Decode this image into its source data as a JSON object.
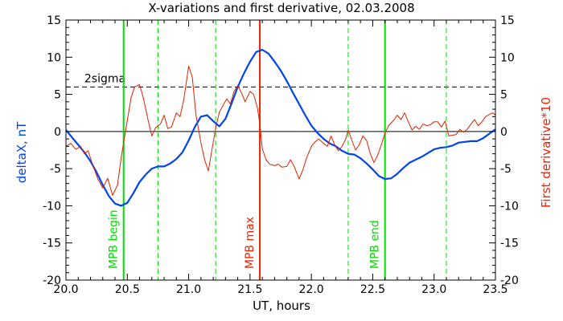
{
  "chart_data": {
    "type": "line",
    "title": "X-variations and first derivative, 02.03.2008",
    "xlabel": "UT, hours",
    "ylabel_left": "deltaX, nT",
    "ylabel_right": "First derivative*10",
    "xlim": [
      20.0,
      23.5
    ],
    "ylim": [
      -20,
      15
    ],
    "x_ticks": [
      20.0,
      20.5,
      21.0,
      21.5,
      22.0,
      22.5,
      23.0,
      23.5
    ],
    "x_tick_labels": [
      "20.0",
      "20.5",
      "21.0",
      "21.5",
      "22.0",
      "22.5",
      "23.0",
      "23.5"
    ],
    "y_ticks": [
      -20,
      -15,
      -10,
      -5,
      0,
      5,
      10,
      15
    ],
    "y_tick_labels": [
      "-20",
      "-15",
      "-10",
      "-5",
      "0",
      "5",
      "10",
      "15"
    ],
    "threshold": {
      "label": "2sigma",
      "value": 6
    },
    "zero_line": 0,
    "vertical_lines": [
      {
        "x": 20.47,
        "style": "solid",
        "color": "#00dd00",
        "label": "MPB begin"
      },
      {
        "x": 20.75,
        "style": "dashed",
        "color": "#00dd00",
        "label": ""
      },
      {
        "x": 21.22,
        "style": "dashed",
        "color": "#00dd00",
        "label": ""
      },
      {
        "x": 21.58,
        "style": "solid",
        "color": "#ee2200",
        "label": "MPB max"
      },
      {
        "x": 22.3,
        "style": "dashed",
        "color": "#00dd00",
        "label": ""
      },
      {
        "x": 22.6,
        "style": "solid",
        "color": "#00dd00",
        "label": "MPB end"
      },
      {
        "x": 23.1,
        "style": "dashed",
        "color": "#00dd00",
        "label": ""
      }
    ],
    "series": [
      {
        "color": "#0044ee",
        "axis": "left",
        "points": [
          [
            20.0,
            0.2
          ],
          [
            20.05,
            -0.8
          ],
          [
            20.1,
            -1.8
          ],
          [
            20.15,
            -2.8
          ],
          [
            20.2,
            -4.0
          ],
          [
            20.25,
            -5.5
          ],
          [
            20.3,
            -7.2
          ],
          [
            20.35,
            -8.7
          ],
          [
            20.4,
            -9.7
          ],
          [
            20.45,
            -10.0
          ],
          [
            20.5,
            -9.6
          ],
          [
            20.55,
            -8.3
          ],
          [
            20.6,
            -6.8
          ],
          [
            20.65,
            -5.8
          ],
          [
            20.7,
            -5.0
          ],
          [
            20.75,
            -4.7
          ],
          [
            20.8,
            -4.7
          ],
          [
            20.85,
            -4.3
          ],
          [
            20.9,
            -3.7
          ],
          [
            20.95,
            -2.8
          ],
          [
            21.0,
            -1.2
          ],
          [
            21.05,
            0.6
          ],
          [
            21.1,
            2.0
          ],
          [
            21.15,
            2.2
          ],
          [
            21.2,
            1.4
          ],
          [
            21.25,
            0.7
          ],
          [
            21.3,
            1.7
          ],
          [
            21.35,
            3.8
          ],
          [
            21.4,
            6.0
          ],
          [
            21.45,
            7.8
          ],
          [
            21.5,
            9.4
          ],
          [
            21.55,
            10.7
          ],
          [
            21.6,
            11.0
          ],
          [
            21.65,
            10.5
          ],
          [
            21.7,
            9.4
          ],
          [
            21.75,
            8.2
          ],
          [
            21.8,
            6.8
          ],
          [
            21.85,
            5.2
          ],
          [
            21.9,
            3.7
          ],
          [
            21.95,
            2.2
          ],
          [
            22.0,
            0.8
          ],
          [
            22.05,
            -0.2
          ],
          [
            22.1,
            -1.0
          ],
          [
            22.15,
            -1.6
          ],
          [
            22.2,
            -2.0
          ],
          [
            22.25,
            -2.6
          ],
          [
            22.3,
            -3.0
          ],
          [
            22.35,
            -3.1
          ],
          [
            22.4,
            -3.6
          ],
          [
            22.45,
            -4.3
          ],
          [
            22.5,
            -5.1
          ],
          [
            22.55,
            -6.0
          ],
          [
            22.6,
            -6.4
          ],
          [
            22.65,
            -6.3
          ],
          [
            22.7,
            -5.7
          ],
          [
            22.75,
            -4.9
          ],
          [
            22.8,
            -4.2
          ],
          [
            22.85,
            -3.8
          ],
          [
            22.9,
            -3.4
          ],
          [
            22.95,
            -2.9
          ],
          [
            23.0,
            -2.4
          ],
          [
            23.05,
            -2.2
          ],
          [
            23.1,
            -2.1
          ],
          [
            23.15,
            -1.9
          ],
          [
            23.2,
            -1.5
          ],
          [
            23.25,
            -1.4
          ],
          [
            23.3,
            -1.3
          ],
          [
            23.35,
            -1.3
          ],
          [
            23.4,
            -0.9
          ],
          [
            23.45,
            -0.3
          ],
          [
            23.5,
            0.3
          ]
        ]
      },
      {
        "color": "#dd2200",
        "axis": "right",
        "points": [
          [
            20.0,
            -2.0
          ],
          [
            20.04,
            -1.6
          ],
          [
            20.08,
            -2.4
          ],
          [
            20.12,
            -2.0
          ],
          [
            20.15,
            -3.0
          ],
          [
            20.18,
            -2.6
          ],
          [
            20.22,
            -4.6
          ],
          [
            20.26,
            -6.4
          ],
          [
            20.3,
            -7.6
          ],
          [
            20.34,
            -6.3
          ],
          [
            20.38,
            -8.6
          ],
          [
            20.42,
            -7.2
          ],
          [
            20.45,
            -3.5
          ],
          [
            20.47,
            -1.5
          ],
          [
            20.5,
            1.5
          ],
          [
            20.53,
            4.5
          ],
          [
            20.56,
            6.0
          ],
          [
            20.6,
            6.3
          ],
          [
            20.63,
            4.6
          ],
          [
            20.67,
            1.5
          ],
          [
            20.7,
            -0.6
          ],
          [
            20.73,
            0.5
          ],
          [
            20.77,
            1.0
          ],
          [
            20.8,
            2.2
          ],
          [
            20.83,
            0.4
          ],
          [
            20.86,
            0.6
          ],
          [
            20.9,
            2.5
          ],
          [
            20.93,
            2.0
          ],
          [
            20.96,
            4.3
          ],
          [
            21.0,
            8.8
          ],
          [
            21.03,
            7.3
          ],
          [
            21.06,
            2.2
          ],
          [
            21.1,
            -1.5
          ],
          [
            21.13,
            -3.8
          ],
          [
            21.16,
            -5.3
          ],
          [
            21.19,
            -2.4
          ],
          [
            21.22,
            0.4
          ],
          [
            21.25,
            2.6
          ],
          [
            21.28,
            3.5
          ],
          [
            21.31,
            4.4
          ],
          [
            21.34,
            3.7
          ],
          [
            21.37,
            5.4
          ],
          [
            21.4,
            6.2
          ],
          [
            21.43,
            5.2
          ],
          [
            21.46,
            4.0
          ],
          [
            21.5,
            5.4
          ],
          [
            21.53,
            5.0
          ],
          [
            21.56,
            3.2
          ],
          [
            21.58,
            1.0
          ],
          [
            21.6,
            -2.3
          ],
          [
            21.63,
            -3.8
          ],
          [
            21.66,
            -4.4
          ],
          [
            21.7,
            -4.6
          ],
          [
            21.73,
            -4.4
          ],
          [
            21.76,
            -4.8
          ],
          [
            21.8,
            -4.7
          ],
          [
            21.83,
            -3.8
          ],
          [
            21.86,
            -4.7
          ],
          [
            21.9,
            -6.4
          ],
          [
            21.93,
            -5.2
          ],
          [
            21.96,
            -3.6
          ],
          [
            22.0,
            -2.0
          ],
          [
            22.03,
            -1.4
          ],
          [
            22.06,
            -1.0
          ],
          [
            22.1,
            -1.6
          ],
          [
            22.13,
            -2.0
          ],
          [
            22.16,
            -0.6
          ],
          [
            22.19,
            -1.8
          ],
          [
            22.22,
            -2.6
          ],
          [
            22.25,
            -2.0
          ],
          [
            22.28,
            -1.0
          ],
          [
            22.3,
            0.2
          ],
          [
            22.33,
            -1.2
          ],
          [
            22.36,
            -2.5
          ],
          [
            22.39,
            -1.8
          ],
          [
            22.42,
            -0.6
          ],
          [
            22.45,
            -1.2
          ],
          [
            22.48,
            -3.0
          ],
          [
            22.51,
            -4.2
          ],
          [
            22.54,
            -3.2
          ],
          [
            22.57,
            -1.8
          ],
          [
            22.6,
            -0.2
          ],
          [
            22.63,
            0.8
          ],
          [
            22.67,
            1.5
          ],
          [
            22.7,
            2.2
          ],
          [
            22.73,
            1.6
          ],
          [
            22.76,
            2.5
          ],
          [
            22.79,
            1.3
          ],
          [
            22.82,
            0.2
          ],
          [
            22.85,
            0.7
          ],
          [
            22.88,
            0.3
          ],
          [
            22.91,
            1.0
          ],
          [
            22.94,
            0.8
          ],
          [
            22.97,
            0.9
          ],
          [
            23.0,
            1.3
          ],
          [
            23.03,
            1.3
          ],
          [
            23.06,
            0.6
          ],
          [
            23.09,
            1.4
          ],
          [
            23.12,
            -0.6
          ],
          [
            23.15,
            -0.5
          ],
          [
            23.18,
            -0.4
          ],
          [
            23.21,
            0.3
          ],
          [
            23.24,
            -0.1
          ],
          [
            23.27,
            0.3
          ],
          [
            23.3,
            1.0
          ],
          [
            23.33,
            1.6
          ],
          [
            23.36,
            0.8
          ],
          [
            23.39,
            1.3
          ],
          [
            23.42,
            2.0
          ],
          [
            23.45,
            2.3
          ],
          [
            23.48,
            2.5
          ],
          [
            23.5,
            2.2
          ]
        ]
      }
    ]
  }
}
